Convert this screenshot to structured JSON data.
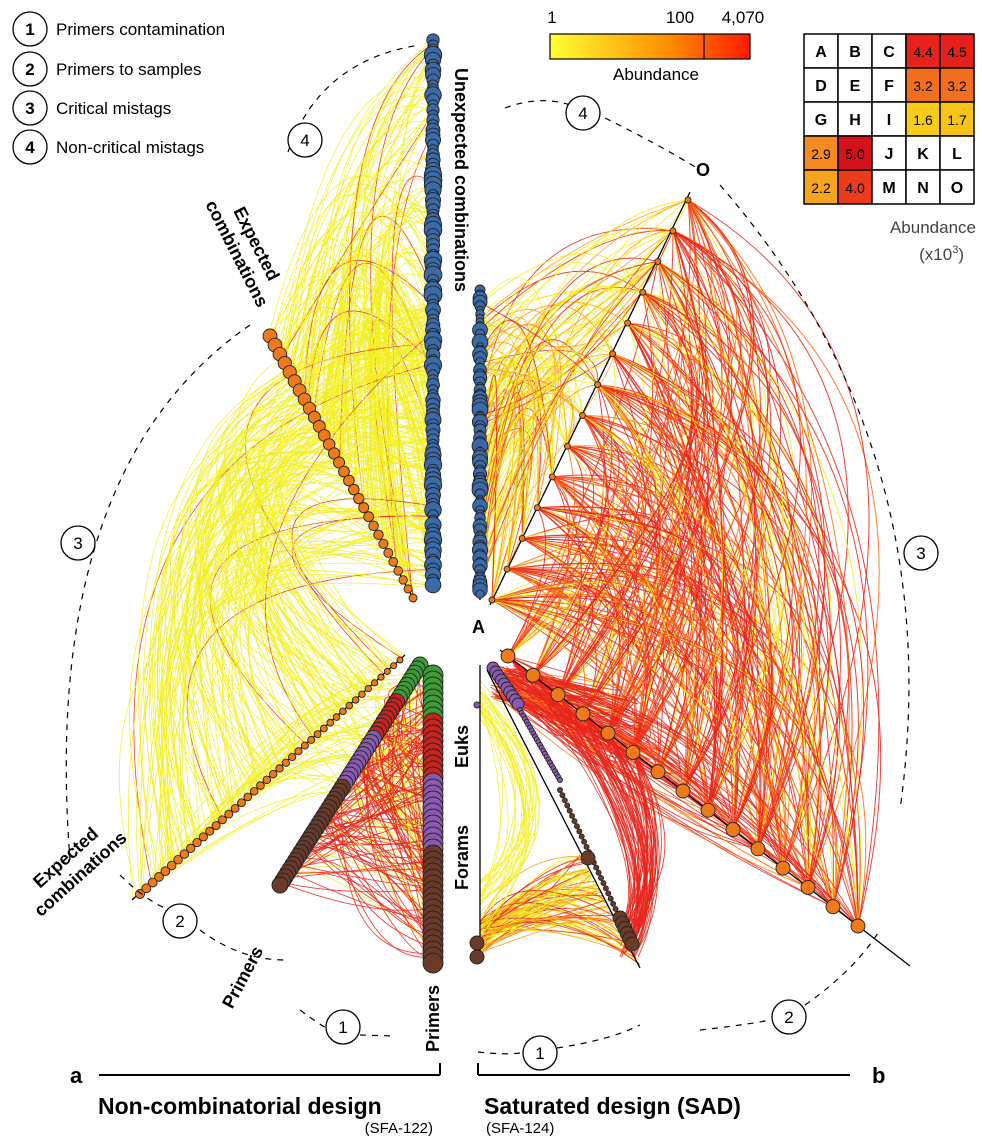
{
  "legend": {
    "items": [
      {
        "num": "1",
        "label": "Primers contamination"
      },
      {
        "num": "2",
        "label": "Primers to samples"
      },
      {
        "num": "3",
        "label": "Critical mistags"
      },
      {
        "num": "4",
        "label": "Non-critical mistags"
      }
    ]
  },
  "colorbar": {
    "label": "Abundance",
    "ticks": [
      "1",
      "100",
      "4,070"
    ],
    "colors": [
      "#ffff33",
      "#ff8c00",
      "#ff1a00"
    ]
  },
  "grid": {
    "rows": [
      [
        {
          "t": "A"
        },
        {
          "t": "B"
        },
        {
          "t": "C"
        },
        {
          "v": "4.4",
          "c": "#e8231d"
        },
        {
          "v": "4.5",
          "c": "#e6201c"
        }
      ],
      [
        {
          "t": "D"
        },
        {
          "t": "E"
        },
        {
          "t": "F"
        },
        {
          "v": "3.2",
          "c": "#f36f1f"
        },
        {
          "v": "3.2",
          "c": "#f36f1f"
        }
      ],
      [
        {
          "t": "G"
        },
        {
          "t": "H"
        },
        {
          "t": "I"
        },
        {
          "v": "1.6",
          "c": "#f8cc17"
        },
        {
          "v": "1.7",
          "c": "#f7c318"
        }
      ],
      [
        {
          "v": "2.9",
          "c": "#f58a20"
        },
        {
          "v": "5.0",
          "c": "#d3121b"
        },
        {
          "t": "J"
        },
        {
          "t": "K"
        },
        {
          "t": "L"
        }
      ],
      [
        {
          "v": "2.2",
          "c": "#f6a41c"
        },
        {
          "v": "4.0",
          "c": "#ec3a1d"
        },
        {
          "t": "M"
        },
        {
          "t": "N"
        },
        {
          "t": "O"
        }
      ]
    ],
    "caption_line1": "Abundance",
    "caption_line2": "(x10",
    "caption_exp": "3",
    "caption_close": ")"
  },
  "panel_a": {
    "letter": "a",
    "title": "Non-combinatorial design",
    "subtitle": "(SFA-122)",
    "axis_labels": {
      "unexpected": "Unexpected combinations",
      "expected_top_1": "Expected",
      "expected_top_2": "combinations",
      "expected_bottom_1": "Expected",
      "expected_bottom_2": "combinations",
      "primers_left": "Primers",
      "primers_right": "Primers",
      "euks": "Euks",
      "forams": "Forams"
    },
    "arc_numbers": [
      "4",
      "3",
      "2",
      "1"
    ]
  },
  "panel_b": {
    "letter": "b",
    "title": "Saturated design (SAD)",
    "subtitle": "(SFA-124)",
    "axis_labels": {
      "A": "A",
      "O": "O"
    },
    "arc_numbers": [
      "4",
      "3",
      "2",
      "1"
    ]
  },
  "node_colors": {
    "unexpected": "#3a6aa8",
    "expected": "#f07a1a",
    "euks_green": "#3e9b35",
    "euks_red": "#c8241e",
    "forams": "#8a5ab0",
    "primers": "#6b3b2a",
    "edge_yellow": "#f2ef1e",
    "edge_red": "#e8251b"
  }
}
